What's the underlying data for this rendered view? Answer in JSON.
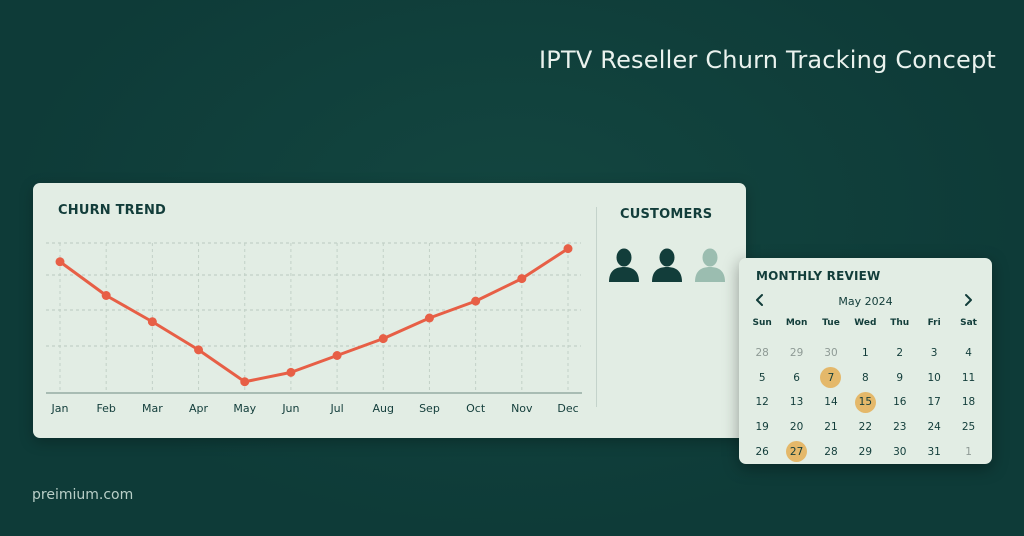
{
  "header": {
    "title": "IPTV Reseller Churn Tracking Concept"
  },
  "footer": {
    "brand": "preimium.com"
  },
  "chart_panel": {
    "title": "CHURN TREND",
    "line_color": "#e75f46"
  },
  "chart_data": {
    "type": "line",
    "categories": [
      "Jan",
      "Feb",
      "Mar",
      "Apr",
      "May",
      "Jun",
      "Jul",
      "Aug",
      "Sep",
      "Oct",
      "Nov",
      "Dec"
    ],
    "series": [
      {
        "values": [
          90,
          72,
          58,
          43,
          26,
          31,
          40,
          49,
          60,
          69,
          81,
          97
        ]
      }
    ],
    "ylim": [
      20,
      100
    ],
    "grid": true,
    "xlabel": "",
    "ylabel": ""
  },
  "customers_panel": {
    "title": "CUSTOMERS",
    "icons": [
      {
        "name": "user-icon",
        "state": "active",
        "color": "#123d3a"
      },
      {
        "name": "user-icon",
        "state": "active",
        "color": "#123d3a"
      },
      {
        "name": "user-icon",
        "state": "churned",
        "color": "#9bbdb0"
      }
    ]
  },
  "calendar": {
    "title": "MONTHLY REVIEW",
    "month_label": "May 2024",
    "prev_icon": "chevron-left-icon",
    "next_icon": "chevron-right-icon",
    "weekdays": [
      "Sun",
      "Mon",
      "Tue",
      "Wed",
      "Thu",
      "Fri",
      "Sat"
    ],
    "weeks": [
      [
        "28",
        "29",
        "30",
        "1",
        "2",
        "3",
        "4"
      ],
      [
        "5",
        "6",
        "7",
        "8",
        "9",
        "10",
        "11"
      ],
      [
        "12",
        "13",
        "14",
        "15",
        "16",
        "17",
        "18"
      ],
      [
        "19",
        "20",
        "21",
        "22",
        "23",
        "24",
        "25"
      ],
      [
        "26",
        "27",
        "28",
        "29",
        "30",
        "31",
        "1"
      ]
    ],
    "highlight_color": "#e4b86a",
    "highlighted_days": [
      "7",
      "15",
      "27"
    ]
  }
}
